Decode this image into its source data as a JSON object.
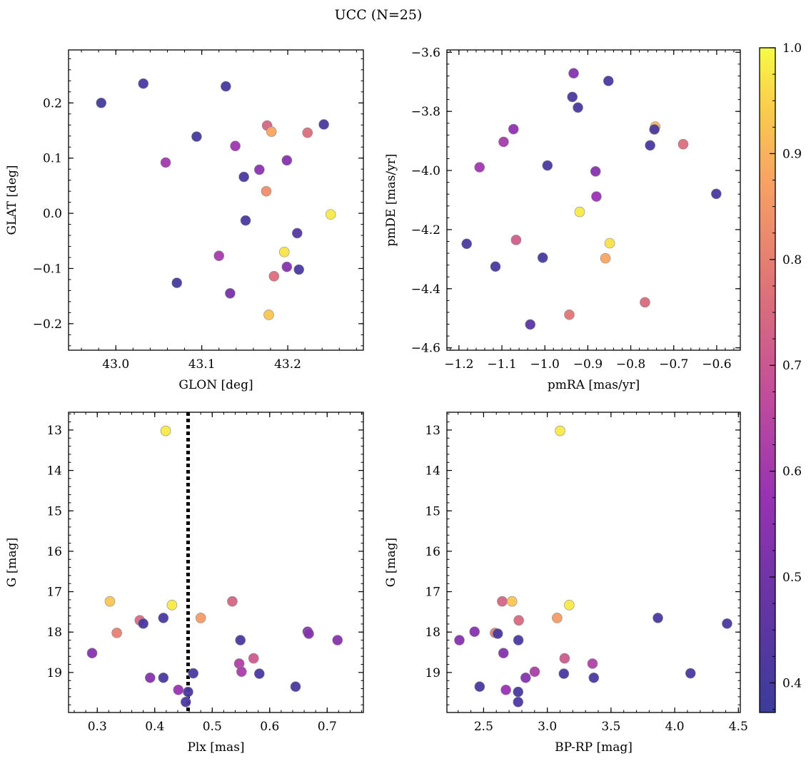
{
  "figure": {
    "title": "UCC (N=25)"
  },
  "colorbar": {
    "range": [
      0.372,
      1.0
    ],
    "ticks": [
      0.4,
      0.5,
      0.6,
      0.7,
      0.8,
      0.9,
      1.0
    ],
    "tick_labels": [
      "0.4",
      "0.5",
      "0.6",
      "0.7",
      "0.8",
      "0.9",
      "1.0"
    ],
    "colormap": "plasma"
  },
  "chart_data": [
    {
      "type": "scatter",
      "id": "glon-glat",
      "xlabel": "GLON [deg]",
      "ylabel": "GLAT [deg]",
      "xlim": [
        42.945,
        43.288
      ],
      "ylim": [
        -0.248,
        0.296
      ],
      "xticks": [
        43.0,
        43.1,
        43.2
      ],
      "xtick_labels": [
        "43.0",
        "43.1",
        "43.2"
      ],
      "yticks": [
        -0.2,
        -0.1,
        0.0,
        0.1,
        0.2
      ],
      "ytick_labels": [
        "−0.2",
        "−0.1",
        "0.0",
        "0.1",
        "0.2"
      ],
      "points": [
        {
          "x": 42.983,
          "y": 0.2,
          "c": 0.39
        },
        {
          "x": 43.032,
          "y": 0.235,
          "c": 0.41
        },
        {
          "x": 43.128,
          "y": 0.23,
          "c": 0.4
        },
        {
          "x": 43.094,
          "y": 0.139,
          "c": 0.4
        },
        {
          "x": 43.058,
          "y": 0.092,
          "c": 0.6
        },
        {
          "x": 43.139,
          "y": 0.122,
          "c": 0.59
        },
        {
          "x": 43.176,
          "y": 0.159,
          "c": 0.74
        },
        {
          "x": 43.181,
          "y": 0.148,
          "c": 0.88
        },
        {
          "x": 43.223,
          "y": 0.146,
          "c": 0.76
        },
        {
          "x": 43.242,
          "y": 0.161,
          "c": 0.41
        },
        {
          "x": 43.167,
          "y": 0.079,
          "c": 0.55
        },
        {
          "x": 43.199,
          "y": 0.096,
          "c": 0.54
        },
        {
          "x": 43.149,
          "y": 0.066,
          "c": 0.41
        },
        {
          "x": 43.175,
          "y": 0.04,
          "c": 0.83
        },
        {
          "x": 43.25,
          "y": -0.002,
          "c": 0.98
        },
        {
          "x": 43.151,
          "y": -0.013,
          "c": 0.41
        },
        {
          "x": 43.211,
          "y": -0.036,
          "c": 0.43
        },
        {
          "x": 43.12,
          "y": -0.077,
          "c": 0.61
        },
        {
          "x": 43.196,
          "y": -0.07,
          "c": 0.97
        },
        {
          "x": 43.199,
          "y": -0.097,
          "c": 0.54
        },
        {
          "x": 43.213,
          "y": -0.102,
          "c": 0.41
        },
        {
          "x": 43.184,
          "y": -0.114,
          "c": 0.76
        },
        {
          "x": 43.071,
          "y": -0.126,
          "c": 0.4
        },
        {
          "x": 43.133,
          "y": -0.145,
          "c": 0.51
        },
        {
          "x": 43.178,
          "y": -0.184,
          "c": 0.93
        }
      ]
    },
    {
      "type": "scatter",
      "id": "pmra-pmde",
      "xlabel": "pmRA [mas/yr]",
      "ylabel": "pmDE [mas/yr]",
      "xlim": [
        -1.228,
        -0.545
      ],
      "ylim": [
        -4.608,
        -3.592
      ],
      "xticks": [
        -1.2,
        -1.1,
        -1.0,
        -0.9,
        -0.8,
        -0.7,
        -0.6
      ],
      "xtick_labels": [
        "−1.2",
        "−1.1",
        "−1.0",
        "−0.9",
        "−0.8",
        "−0.7",
        "−0.6"
      ],
      "yticks": [
        -4.6,
        -4.4,
        -4.2,
        -4.0,
        -3.8,
        -3.6
      ],
      "ytick_labels": [
        "−4.6",
        "−4.4",
        "−4.2",
        "−4.0",
        "−3.8",
        "−3.6"
      ],
      "points": [
        {
          "x": -0.933,
          "y": -3.671,
          "c": 0.54
        },
        {
          "x": -0.852,
          "y": -3.697,
          "c": 0.41
        },
        {
          "x": -0.936,
          "y": -3.751,
          "c": 0.41
        },
        {
          "x": -0.923,
          "y": -3.787,
          "c": 0.41
        },
        {
          "x": -1.073,
          "y": -3.86,
          "c": 0.56
        },
        {
          "x": -0.743,
          "y": -3.852,
          "c": 0.91
        },
        {
          "x": -0.745,
          "y": -3.861,
          "c": 0.41
        },
        {
          "x": -1.096,
          "y": -3.903,
          "c": 0.61
        },
        {
          "x": -0.755,
          "y": -3.915,
          "c": 0.41
        },
        {
          "x": -0.678,
          "y": -3.911,
          "c": 0.76
        },
        {
          "x": -1.152,
          "y": -3.989,
          "c": 0.6
        },
        {
          "x": -0.994,
          "y": -3.983,
          "c": 0.41
        },
        {
          "x": -0.882,
          "y": -4.003,
          "c": 0.54
        },
        {
          "x": -0.88,
          "y": -4.088,
          "c": 0.58
        },
        {
          "x": -0.601,
          "y": -4.079,
          "c": 0.41
        },
        {
          "x": -0.919,
          "y": -4.14,
          "c": 0.98
        },
        {
          "x": -1.067,
          "y": -4.235,
          "c": 0.72
        },
        {
          "x": -0.849,
          "y": -4.246,
          "c": 0.97
        },
        {
          "x": -1.182,
          "y": -4.248,
          "c": 0.41
        },
        {
          "x": -0.859,
          "y": -4.297,
          "c": 0.88
        },
        {
          "x": -1.005,
          "y": -4.295,
          "c": 0.4
        },
        {
          "x": -1.115,
          "y": -4.325,
          "c": 0.4
        },
        {
          "x": -0.767,
          "y": -4.446,
          "c": 0.75
        },
        {
          "x": -0.943,
          "y": -4.488,
          "c": 0.78
        },
        {
          "x": -1.034,
          "y": -4.521,
          "c": 0.45
        }
      ]
    },
    {
      "type": "scatter",
      "id": "plx-g",
      "xlabel": "Plx [mas]",
      "ylabel": "G [mag]",
      "xlim": [
        0.25,
        0.763
      ],
      "ylim": [
        19.99,
        12.56
      ],
      "yreversed": true,
      "xticks": [
        0.3,
        0.4,
        0.5,
        0.6,
        0.7
      ],
      "xtick_labels": [
        "0.3",
        "0.4",
        "0.5",
        "0.6",
        "0.7"
      ],
      "yticks": [
        13,
        14,
        15,
        16,
        17,
        18,
        19
      ],
      "ytick_labels": [
        "13",
        "14",
        "15",
        "16",
        "17",
        "18",
        "19"
      ],
      "vline": {
        "x": 0.458,
        "style": "dotted"
      },
      "points": [
        {
          "x": 0.419,
          "y": 13.02,
          "c": 0.98
        },
        {
          "x": 0.322,
          "y": 17.24,
          "c": 0.93
        },
        {
          "x": 0.43,
          "y": 17.33,
          "c": 0.98
        },
        {
          "x": 0.535,
          "y": 17.24,
          "c": 0.74
        },
        {
          "x": 0.48,
          "y": 17.65,
          "c": 0.86
        },
        {
          "x": 0.374,
          "y": 17.71,
          "c": 0.75
        },
        {
          "x": 0.38,
          "y": 17.79,
          "c": 0.41
        },
        {
          "x": 0.415,
          "y": 17.65,
          "c": 0.41
        },
        {
          "x": 0.334,
          "y": 18.02,
          "c": 0.8
        },
        {
          "x": 0.666,
          "y": 17.99,
          "c": 0.54
        },
        {
          "x": 0.668,
          "y": 18.04,
          "c": 0.54
        },
        {
          "x": 0.549,
          "y": 18.2,
          "c": 0.41
        },
        {
          "x": 0.718,
          "y": 18.2,
          "c": 0.54
        },
        {
          "x": 0.291,
          "y": 18.52,
          "c": 0.54
        },
        {
          "x": 0.572,
          "y": 18.65,
          "c": 0.71
        },
        {
          "x": 0.547,
          "y": 18.78,
          "c": 0.63
        },
        {
          "x": 0.551,
          "y": 18.98,
          "c": 0.62
        },
        {
          "x": 0.467,
          "y": 19.02,
          "c": 0.41
        },
        {
          "x": 0.582,
          "y": 19.03,
          "c": 0.41
        },
        {
          "x": 0.392,
          "y": 19.13,
          "c": 0.54
        },
        {
          "x": 0.415,
          "y": 19.13,
          "c": 0.41
        },
        {
          "x": 0.645,
          "y": 19.35,
          "c": 0.41
        },
        {
          "x": 0.441,
          "y": 19.43,
          "c": 0.58
        },
        {
          "x": 0.458,
          "y": 19.48,
          "c": 0.41
        },
        {
          "x": 0.454,
          "y": 19.73,
          "c": 0.42
        }
      ]
    },
    {
      "type": "scatter",
      "id": "bprp-g",
      "xlabel": "BP-RP [mag]",
      "ylabel": "G [mag]",
      "xlim": [
        2.212,
        4.515
      ],
      "ylim": [
        19.99,
        12.56
      ],
      "yreversed": true,
      "xticks": [
        2.5,
        3.0,
        3.5,
        4.0,
        4.5
      ],
      "xtick_labels": [
        "2.5",
        "3.0",
        "3.5",
        "4.0",
        "4.5"
      ],
      "yticks": [
        13,
        14,
        15,
        16,
        17,
        18,
        19
      ],
      "ytick_labels": [
        "13",
        "14",
        "15",
        "16",
        "17",
        "18",
        "19"
      ],
      "points": [
        {
          "x": 3.1,
          "y": 13.02,
          "c": 0.98
        },
        {
          "x": 2.646,
          "y": 17.24,
          "c": 0.74
        },
        {
          "x": 2.723,
          "y": 17.24,
          "c": 0.93
        },
        {
          "x": 3.172,
          "y": 17.33,
          "c": 0.98
        },
        {
          "x": 3.077,
          "y": 17.65,
          "c": 0.86
        },
        {
          "x": 2.776,
          "y": 17.71,
          "c": 0.75
        },
        {
          "x": 3.868,
          "y": 17.65,
          "c": 0.41
        },
        {
          "x": 4.411,
          "y": 17.79,
          "c": 0.41
        },
        {
          "x": 2.429,
          "y": 17.99,
          "c": 0.54
        },
        {
          "x": 2.59,
          "y": 18.02,
          "c": 0.8
        },
        {
          "x": 2.611,
          "y": 18.04,
          "c": 0.41
        },
        {
          "x": 2.31,
          "y": 18.2,
          "c": 0.54
        },
        {
          "x": 2.773,
          "y": 18.2,
          "c": 0.41
        },
        {
          "x": 2.656,
          "y": 18.52,
          "c": 0.54
        },
        {
          "x": 3.136,
          "y": 18.65,
          "c": 0.71
        },
        {
          "x": 3.355,
          "y": 18.78,
          "c": 0.63
        },
        {
          "x": 2.901,
          "y": 18.98,
          "c": 0.62
        },
        {
          "x": 4.124,
          "y": 19.02,
          "c": 0.41
        },
        {
          "x": 3.13,
          "y": 19.03,
          "c": 0.41
        },
        {
          "x": 2.83,
          "y": 19.13,
          "c": 0.54
        },
        {
          "x": 3.365,
          "y": 19.13,
          "c": 0.41
        },
        {
          "x": 2.469,
          "y": 19.35,
          "c": 0.41
        },
        {
          "x": 2.675,
          "y": 19.43,
          "c": 0.58
        },
        {
          "x": 2.771,
          "y": 19.48,
          "c": 0.41
        },
        {
          "x": 2.771,
          "y": 19.73,
          "c": 0.42
        }
      ]
    }
  ]
}
